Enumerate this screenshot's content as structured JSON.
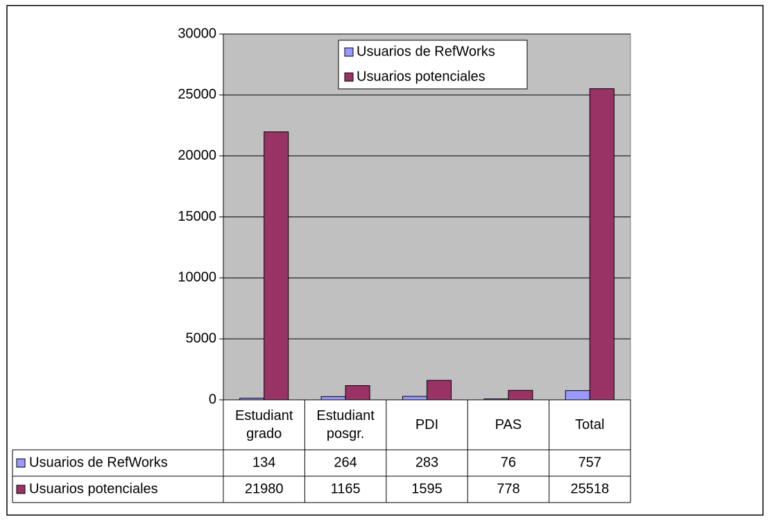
{
  "chart_data": {
    "type": "bar",
    "categories": [
      "Estudiant grado",
      "Estudiant posgr.",
      "PDI",
      "PAS",
      "Total"
    ],
    "series": [
      {
        "name": "Usuarios de RefWorks",
        "color": "#9999ff",
        "values": [
          134,
          264,
          283,
          76,
          757
        ]
      },
      {
        "name": "Usuarios potenciales",
        "color": "#993366",
        "values": [
          21980,
          1165,
          1595,
          778,
          25518
        ]
      }
    ],
    "ylim": [
      0,
      30000
    ],
    "yticks": [
      0,
      5000,
      10000,
      15000,
      20000,
      25000,
      30000
    ],
    "grid": true,
    "legend": "top",
    "data_table": true
  }
}
